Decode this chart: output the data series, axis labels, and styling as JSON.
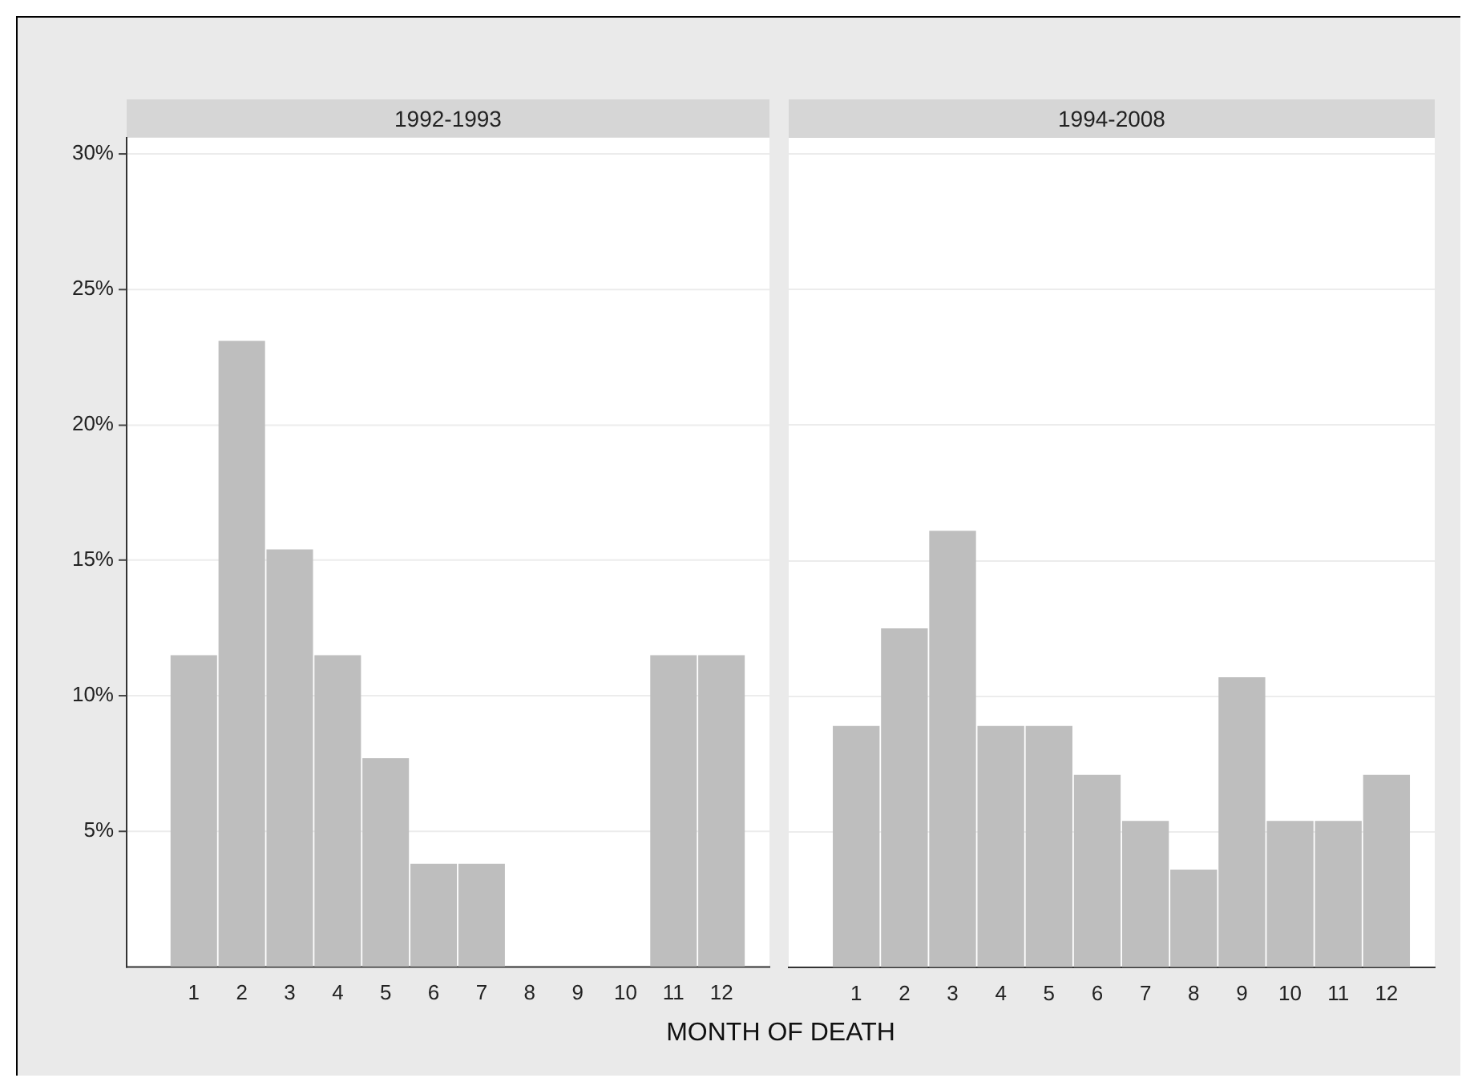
{
  "chart_data": [
    {
      "type": "bar",
      "title": "1992-1993",
      "xlabel": "MONTH OF DEATH",
      "x": [
        1,
        2,
        3,
        4,
        5,
        6,
        7,
        8,
        9,
        10,
        11,
        12
      ],
      "values": [
        11.5,
        23.1,
        15.4,
        11.5,
        7.7,
        3.8,
        3.8,
        0,
        0,
        0,
        11.5,
        11.5
      ],
      "color": "#bebebe",
      "xlim": [
        -0.4,
        13
      ],
      "xticks": [
        1,
        2,
        3,
        4,
        5,
        6,
        7,
        8,
        9,
        10,
        11,
        12
      ],
      "ylim": [
        0,
        30.6
      ],
      "yticks": [
        {
          "value": 5,
          "label": "5%"
        },
        {
          "value": 10,
          "label": "10%"
        },
        {
          "value": 15,
          "label": "15%"
        },
        {
          "value": 20,
          "label": "20%"
        },
        {
          "value": 25,
          "label": "25%"
        },
        {
          "value": 30,
          "label": "30%"
        }
      ],
      "grid": "y"
    },
    {
      "type": "bar",
      "title": "1994-2008",
      "x": [
        1,
        2,
        3,
        4,
        5,
        6,
        7,
        8,
        9,
        10,
        11,
        12
      ],
      "values": [
        8.9,
        12.5,
        16.1,
        8.9,
        8.9,
        7.1,
        5.4,
        3.6,
        10.7,
        5.4,
        5.4,
        7.1
      ],
      "color": "#bebebe",
      "xlim": [
        -0.4,
        13
      ],
      "xticks": [
        1,
        2,
        3,
        4,
        5,
        6,
        7,
        8,
        9,
        10,
        11,
        12
      ],
      "ylim": [
        0,
        30.6
      ],
      "yticks": [
        5,
        10,
        15,
        20,
        25,
        30
      ],
      "grid": "y",
      "tick_labels": "x"
    }
  ]
}
